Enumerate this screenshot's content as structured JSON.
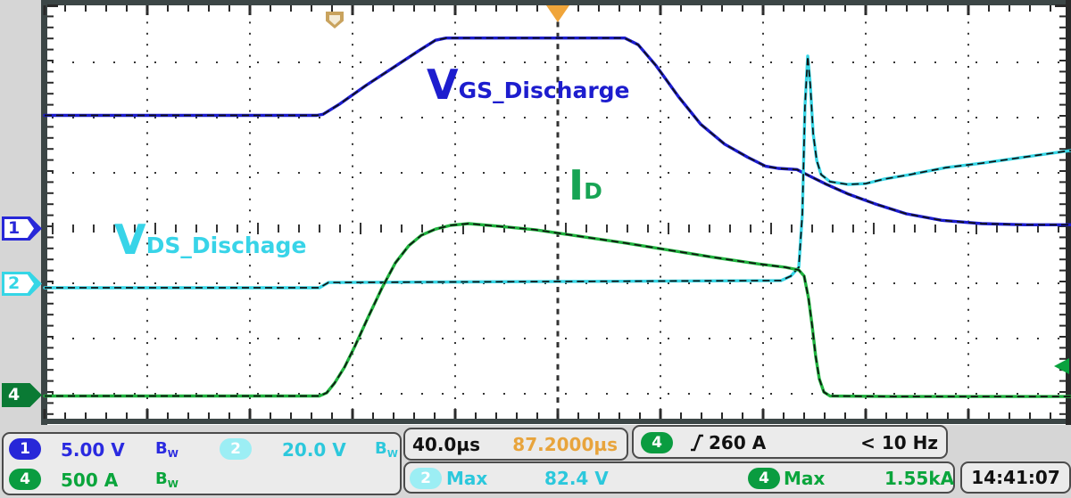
{
  "colors": {
    "ch1_blue": "#1b1bce",
    "ch2_cyan": "#35d6e6",
    "ch4_green": "#1fb33e",
    "trigger_orange": "#f0a53a",
    "readout_orange": "#e8a43c",
    "trace_outline": "#111111"
  },
  "trace_labels": {
    "vgs": {
      "main": "V",
      "sub": "GS_Discharge"
    },
    "id": {
      "main": "I",
      "sub": "D"
    },
    "vds": {
      "main": "V",
      "sub": "DS_Dischage"
    }
  },
  "left_markers": {
    "ch1": "1",
    "ch2": "2",
    "ch4": "4"
  },
  "status": {
    "ch1": {
      "badge": "1",
      "scale": "5.00 V",
      "bw_main": "B",
      "bw_sub": "W"
    },
    "ch2": {
      "badge": "2",
      "scale": "20.0 V",
      "bw_main": "B",
      "bw_sub": "W"
    },
    "ch4": {
      "badge": "4",
      "scale": "500 A",
      "bw_main": "B",
      "bw_sub": "W"
    },
    "timebase": {
      "main": "40.0µs",
      "delay": "87.2000µs"
    },
    "trigger": {
      "badge": "4",
      "level": "260 A",
      "rate": "< 10 Hz"
    },
    "meas2": {
      "badge": "2",
      "label": "Max",
      "value": "82.4 V"
    },
    "meas4": {
      "badge": "4",
      "label": "Max",
      "value": "1.55kA"
    },
    "clock": "14:41:07"
  },
  "chart_data": {
    "type": "line",
    "x_units": "µs",
    "timebase_per_div_us": 40,
    "x_range_us": [
      0,
      400
    ],
    "divisions": {
      "horizontal": 10,
      "vertical": 8
    },
    "grid": "dotted graticule, center crosshair axes with minor ticks",
    "legend_position": "annotations on plot",
    "series": [
      {
        "name": "V_GS_Discharge",
        "channel": 1,
        "unit": "V",
        "per_div": 5,
        "zero_div": 0,
        "color": "#1b1bce",
        "points": [
          [
            0,
            10.2
          ],
          [
            106.1,
            10.2
          ],
          [
            108.5,
            10.3
          ],
          [
            114.8,
            11.2
          ],
          [
            125.2,
            12.9
          ],
          [
            135.7,
            14.5
          ],
          [
            146.1,
            16.1
          ],
          [
            152.3,
            17.0
          ],
          [
            156.5,
            17.2
          ],
          [
            226.1,
            17.2
          ],
          [
            231.3,
            16.6
          ],
          [
            238.3,
            14.7
          ],
          [
            247.0,
            11.9
          ],
          [
            255.7,
            9.4
          ],
          [
            265.0,
            7.6
          ],
          [
            274.1,
            6.4
          ],
          [
            281.0,
            5.6
          ],
          [
            285.9,
            5.4
          ],
          [
            293.2,
            5.3
          ],
          [
            297.4,
            4.8
          ],
          [
            304.3,
            4.0
          ],
          [
            313.0,
            3.1
          ],
          [
            323.5,
            2.2
          ],
          [
            335.7,
            1.3
          ],
          [
            349.6,
            0.7
          ],
          [
            365.2,
            0.4
          ],
          [
            382.6,
            0.3
          ],
          [
            400,
            0.3
          ]
        ]
      },
      {
        "name": "V_DS_Dischage",
        "channel": 2,
        "unit": "V",
        "per_div": 20,
        "zero_div": -1,
        "color": "#35d6e6",
        "points": [
          [
            0,
            -1.6
          ],
          [
            107.1,
            -1.6
          ],
          [
            110.6,
            0.3
          ],
          [
            191.3,
            0.6
          ],
          [
            287.0,
            1.0
          ],
          [
            290.8,
            2.6
          ],
          [
            293.9,
            5.8
          ],
          [
            295.3,
            25.2
          ],
          [
            296.3,
            63.9
          ],
          [
            297.4,
            82.3
          ],
          [
            298.4,
            71.9
          ],
          [
            299.5,
            54.2
          ],
          [
            300.9,
            44.5
          ],
          [
            302.6,
            39.4
          ],
          [
            306.1,
            36.8
          ],
          [
            313.0,
            35.8
          ],
          [
            320.0,
            36.1
          ],
          [
            327.0,
            37.7
          ],
          [
            337.4,
            39.4
          ],
          [
            351.3,
            41.9
          ],
          [
            365.2,
            43.5
          ],
          [
            382.6,
            45.8
          ],
          [
            400,
            48.1
          ]
        ]
      },
      {
        "name": "I_D",
        "channel": 4,
        "unit": "A",
        "per_div": 500,
        "zero_div": -3,
        "color": "#1fb33e",
        "points": [
          [
            0,
            -20
          ],
          [
            107.1,
            -20
          ],
          [
            109.9,
            8
          ],
          [
            113.0,
            97
          ],
          [
            116.9,
            242
          ],
          [
            121.0,
            435
          ],
          [
            125.9,
            685
          ],
          [
            131.5,
            960
          ],
          [
            136.7,
            1185
          ],
          [
            141.9,
            1340
          ],
          [
            146.8,
            1435
          ],
          [
            152.3,
            1490
          ],
          [
            158.3,
            1525
          ],
          [
            165.2,
            1540
          ],
          [
            177.4,
            1515
          ],
          [
            191.3,
            1485
          ],
          [
            208.7,
            1425
          ],
          [
            226.1,
            1365
          ],
          [
            243.5,
            1300
          ],
          [
            260.9,
            1235
          ],
          [
            278.3,
            1175
          ],
          [
            288.7,
            1145
          ],
          [
            293.9,
            1120
          ],
          [
            296.0,
            1065
          ],
          [
            297.7,
            865
          ],
          [
            299.1,
            620
          ],
          [
            300.5,
            340
          ],
          [
            301.9,
            135
          ],
          [
            303.7,
            15
          ],
          [
            306.1,
            -20
          ],
          [
            330.4,
            -25
          ],
          [
            400,
            -25
          ]
        ]
      }
    ],
    "markers": {
      "trigger_position_div_from_left": 5,
      "reference_marker_div_from_left": 2.82,
      "trigger_level": {
        "channel": 4,
        "value_A": 260
      }
    },
    "measurements": [
      {
        "channel": 2,
        "type": "Max",
        "value": "82.4 V"
      },
      {
        "channel": 4,
        "type": "Max",
        "value": "1.55kA"
      }
    ]
  }
}
